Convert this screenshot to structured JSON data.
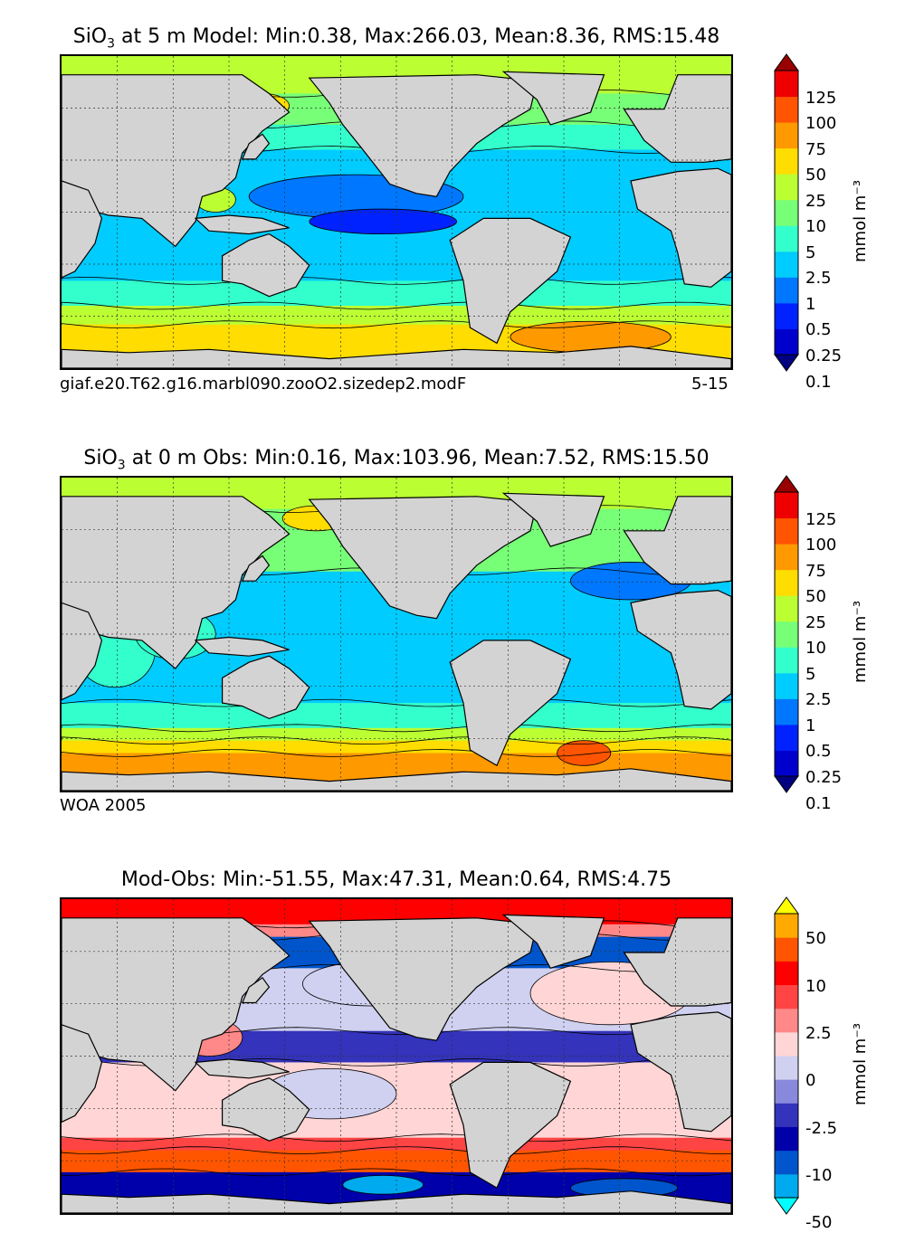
{
  "chart_data": [
    {
      "type": "heatmap",
      "title_prefix": "SiO",
      "title_sub": "3",
      "title_rest": " at 5 m Model: Min:0.38, Max:266.03, Mean:8.36, RMS:15.48",
      "caption_left": "giaf.e20.T62.g16.marbl090.zooO2.sizedep2.modF",
      "caption_right": "5-15",
      "units": "mmol m⁻³",
      "colorbar_labels": [
        "125",
        "100",
        "75",
        "50",
        "25",
        "10",
        "5",
        "2.5",
        "1",
        "0.5",
        "0.25",
        "0.1"
      ],
      "colorbar_colors": [
        "#000080",
        "#0000cc",
        "#0022ff",
        "#0077ff",
        "#00ccff",
        "#33ffcc",
        "#77ff77",
        "#bbff33",
        "#ffdd00",
        "#ff9900",
        "#ff5500",
        "#ee0000",
        "#990000"
      ]
    },
    {
      "type": "heatmap",
      "title_prefix": "SiO",
      "title_sub": "3",
      "title_rest": " at 0 m Obs: Min:0.16, Max:103.96, Mean:7.52, RMS:15.50",
      "caption_left": "WOA 2005",
      "caption_right": "",
      "units": "mmol m⁻³",
      "colorbar_labels": [
        "125",
        "100",
        "75",
        "50",
        "25",
        "10",
        "5",
        "2.5",
        "1",
        "0.5",
        "0.25",
        "0.1"
      ],
      "colorbar_colors": [
        "#000080",
        "#0000cc",
        "#0022ff",
        "#0077ff",
        "#00ccff",
        "#33ffcc",
        "#77ff77",
        "#bbff33",
        "#ffdd00",
        "#ff9900",
        "#ff5500",
        "#ee0000",
        "#990000"
      ]
    },
    {
      "type": "heatmap",
      "title_prefix": "",
      "title_sub": "",
      "title_rest": "Mod-Obs: Min:-51.55, Max:47.31, Mean:0.64, RMS:4.75",
      "caption_left": "",
      "caption_right": "",
      "units": "mmol m⁻³",
      "colorbar_labels": [
        "50",
        "10",
        "2.5",
        "0",
        "-2.5",
        "-10",
        "-50"
      ],
      "colorbar_colors": [
        "#00ffff",
        "#00aaee",
        "#0055cc",
        "#0000aa",
        "#3333bb",
        "#8888dd",
        "#d0d0f0",
        "#ffd5d5",
        "#ff8888",
        "#ff4444",
        "#ff0000",
        "#ff5500",
        "#ffaa00",
        "#ffff00"
      ]
    }
  ],
  "land_color": "#d3d3d3"
}
